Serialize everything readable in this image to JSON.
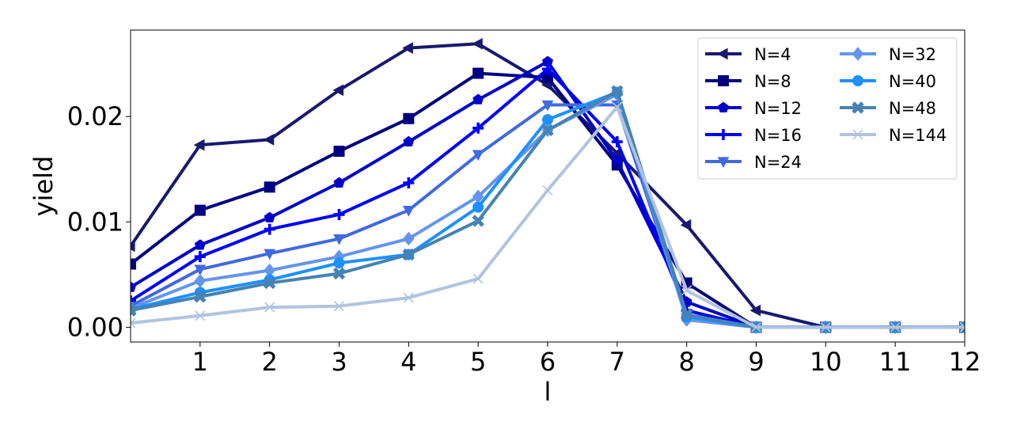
{
  "chart_data": {
    "type": "line",
    "xlabel": "l",
    "ylabel": "yield",
    "xlim": [
      0,
      12
    ],
    "ylim": [
      -0.0014,
      0.0282
    ],
    "xticks": [
      1,
      2,
      3,
      4,
      5,
      6,
      7,
      8,
      9,
      10,
      11,
      12
    ],
    "xtick_labels": [
      "1",
      "2",
      "3",
      "4",
      "5",
      "6",
      "7",
      "8",
      "9",
      "10",
      "11",
      "12"
    ],
    "yticks": [
      0.0,
      0.01,
      0.02
    ],
    "ytick_labels": [
      "0.00",
      "0.01",
      "0.02"
    ],
    "grid": false,
    "legend_position": "top-right",
    "legend_columns": 2,
    "x": [
      0,
      1,
      2,
      3,
      4,
      5,
      6,
      7,
      8,
      9,
      10,
      11,
      12
    ],
    "series": [
      {
        "name": "N=4",
        "color": "#191970",
        "marker": "triangle-left",
        "values": [
          0.0077,
          0.0173,
          0.0178,
          0.0225,
          0.0265,
          0.0269,
          0.023,
          0.0165,
          0.0097,
          0.0016,
          0.0,
          0.0,
          0.0
        ]
      },
      {
        "name": "N=8",
        "color": "#000080",
        "marker": "square",
        "values": [
          0.006,
          0.0111,
          0.0133,
          0.0167,
          0.0198,
          0.0241,
          0.0237,
          0.0154,
          0.0042,
          0.0,
          0.0,
          0.0,
          0.0
        ]
      },
      {
        "name": "N=12",
        "color": "#0000cd",
        "marker": "pentagon",
        "values": [
          0.0038,
          0.0078,
          0.0104,
          0.0137,
          0.0176,
          0.0216,
          0.0252,
          0.0158,
          0.0024,
          0.0,
          0.0,
          0.0,
          0.0
        ]
      },
      {
        "name": "N=16",
        "color": "#0000ff",
        "marker": "plus",
        "values": [
          0.0025,
          0.0067,
          0.0093,
          0.0107,
          0.0137,
          0.0189,
          0.0245,
          0.0176,
          0.0016,
          0.0,
          0.0,
          0.0,
          0.0
        ]
      },
      {
        "name": "N=24",
        "color": "#4169e1",
        "marker": "triangle-down",
        "values": [
          0.002,
          0.0055,
          0.007,
          0.0084,
          0.0111,
          0.0164,
          0.0211,
          0.0211,
          0.0009,
          0.0,
          0.0,
          0.0,
          0.0
        ]
      },
      {
        "name": "N=32",
        "color": "#6495ed",
        "marker": "diamond",
        "values": [
          0.0018,
          0.0044,
          0.0054,
          0.0067,
          0.0084,
          0.0124,
          0.0187,
          0.0221,
          0.0007,
          0.0,
          0.0,
          0.0,
          0.0
        ]
      },
      {
        "name": "N=40",
        "color": "#1e90ff",
        "marker": "circle",
        "values": [
          0.0017,
          0.0033,
          0.0045,
          0.0061,
          0.0069,
          0.0114,
          0.0197,
          0.0223,
          0.001,
          0.0,
          0.0,
          0.0,
          0.0
        ]
      },
      {
        "name": "N=48",
        "color": "#4682b4",
        "marker": "x-filled",
        "values": [
          0.0016,
          0.0029,
          0.0042,
          0.0051,
          0.0069,
          0.0101,
          0.0187,
          0.0224,
          0.0012,
          0.0,
          0.0,
          0.0,
          0.0
        ]
      },
      {
        "name": "N=144",
        "color": "#b0c4de",
        "marker": "x",
        "values": [
          0.0004,
          0.0011,
          0.0019,
          0.002,
          0.0028,
          0.0046,
          0.013,
          0.0209,
          0.0035,
          0.0,
          0.0,
          0.0,
          0.0
        ]
      }
    ]
  }
}
